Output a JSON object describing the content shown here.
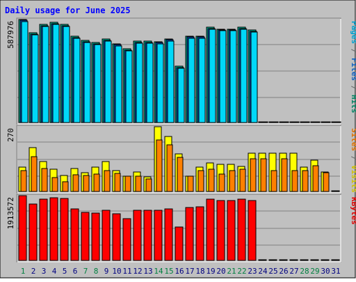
{
  "chart_data": {
    "type": "bar",
    "title": "Daily usage for June 2025",
    "categories": [
      "1",
      "2",
      "3",
      "4",
      "5",
      "6",
      "7",
      "8",
      "9",
      "10",
      "11",
      "12",
      "13",
      "14",
      "15",
      "16",
      "17",
      "18",
      "19",
      "20",
      "21",
      "22",
      "23",
      "24",
      "25",
      "26",
      "27",
      "28",
      "29",
      "30",
      "31"
    ],
    "weekend_days": [
      "1",
      "7",
      "8",
      "14",
      "15",
      "21",
      "22",
      "28",
      "29"
    ],
    "panels": [
      {
        "name": "hits",
        "scale_label": "587976",
        "axis_labels": [
          {
            "text": "Pages",
            "color": "#00a0d0"
          },
          {
            "text": " / ",
            "color": "#666666"
          },
          {
            "text": "Files",
            "color": "#1060c0"
          },
          {
            "text": " / ",
            "color": "#666666"
          },
          {
            "text": "Hits",
            "color": "#008060"
          }
        ],
        "ymax": 587976,
        "series": [
          {
            "name": "Hits",
            "color": "#00bfa0",
            "values": [
              587976,
              511560,
              558590,
              570350,
              558590,
              491180,
              467660,
              455900,
              475500,
              449970,
              420570,
              464730,
              464730,
              461790,
              478440,
              321700,
              493120,
              493120,
              544040,
              534240,
              534240,
              544040,
              526400,
              0,
              0,
              0,
              0,
              0,
              0,
              0,
              0
            ]
          },
          {
            "name": "Files",
            "color": "#0050c0",
            "values": [
              582100,
              505680,
              552710,
              564470,
              552710,
              485300,
              461780,
              450020,
              469620,
              444090,
              414690,
              458850,
              458850,
              455910,
              472560,
              315820,
              487240,
              487240,
              538160,
              528360,
              528360,
              538160,
              520520,
              0,
              0,
              0,
              0,
              0,
              0,
              0,
              0
            ]
          },
          {
            "name": "Pages",
            "color": "#00d8f8",
            "values": [
              576200,
              499800,
              546800,
              558600,
              546800,
              479400,
              455900,
              444100,
              463700,
              438200,
              408800,
              452900,
              452900,
              450000,
              466700,
              309900,
              481400,
              481400,
              532300,
              522500,
              522500,
              532300,
              514600,
              0,
              0,
              0,
              0,
              0,
              0,
              0,
              0
            ]
          }
        ]
      },
      {
        "name": "visits",
        "scale_label": "270",
        "axis_labels": [
          {
            "text": "Sites",
            "color": "#e07000"
          },
          {
            "text": " / ",
            "color": "#666666"
          },
          {
            "text": "Visits",
            "color": "#d0c000"
          }
        ],
        "ymax": 270,
        "series": [
          {
            "name": "Visits",
            "color": "#ffff00",
            "values": [
              103,
              184,
              126,
              94,
              66,
              97,
              78,
              101,
              125,
              86,
              64,
              80,
              62,
              270,
              229,
              156,
              63,
              102,
              118,
              113,
              113,
              105,
              159,
              159,
              159,
              159,
              159,
              102,
              132,
              80,
              0
            ]
          },
          {
            "name": "Sites",
            "color": "#ff8000",
            "values": [
              87,
              146,
              97,
              57,
              42,
              71,
              66,
              73,
              88,
              75,
              64,
              64,
              52,
              214,
              195,
              143,
              63,
              86,
              94,
              74,
              87,
              92,
              137,
              137,
              87,
              137,
              87,
              87,
              108,
              79,
              0
            ]
          }
        ]
      },
      {
        "name": "kbytes",
        "scale_label": "1913572",
        "axis_labels": [
          {
            "text": "KBytes",
            "color": "#e00000"
          }
        ],
        "ymax": 1913572,
        "series": [
          {
            "name": "KBytes",
            "color": "#ff0000",
            "values": [
              1913572,
              1660000,
              1804000,
              1862000,
              1833000,
              1530000,
              1429000,
              1400000,
              1486000,
              1386000,
              1230000,
              1472000,
              1472000,
              1472000,
              1530000,
              981000,
              1559000,
              1587000,
              1804000,
              1775000,
              1775000,
              1804000,
              1775000,
              0,
              0,
              0,
              0,
              0,
              0,
              0,
              0
            ]
          }
        ]
      }
    ]
  },
  "colors": {
    "frame_bg": "#c0c0c0",
    "plot_bg": "#c0c0c0",
    "title": "#0000ff",
    "grid": "#808080",
    "weekday_label": "#000080",
    "weekend_label": "#008040"
  }
}
